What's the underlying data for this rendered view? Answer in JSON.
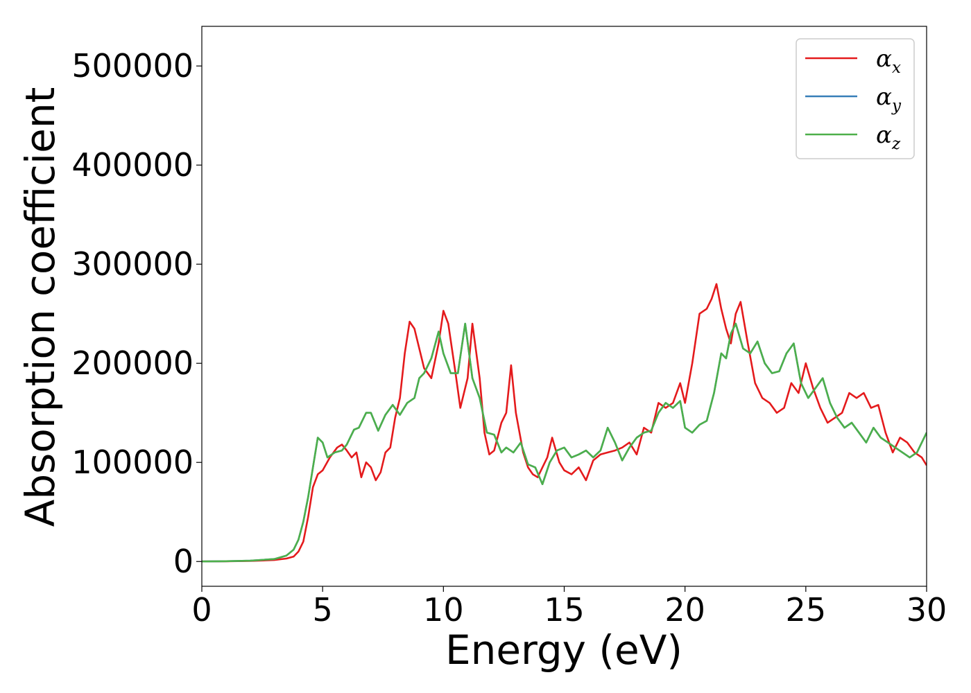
{
  "chart_data": {
    "type": "line",
    "title": "",
    "xlabel": "Energy (eV)",
    "ylabel": "Absorption coefficient",
    "xlim": [
      0,
      30
    ],
    "ylim": [
      -25000,
      540000
    ],
    "xticks": [
      0,
      5,
      10,
      15,
      20,
      25,
      30
    ],
    "xtick_labels": [
      "0",
      "5",
      "10",
      "15",
      "20",
      "25",
      "30"
    ],
    "yticks": [
      0,
      100000,
      200000,
      300000,
      400000,
      500000
    ],
    "ytick_labels": [
      "0",
      "100000",
      "200000",
      "300000",
      "400000",
      "500000"
    ],
    "grid": false,
    "legend_position": "top-right",
    "series": [
      {
        "name": "αx",
        "symbol": "α",
        "subscript": "x",
        "color": "#e41a1c",
        "x": [
          0,
          1,
          2,
          3,
          3.5,
          3.8,
          4.0,
          4.2,
          4.4,
          4.6,
          4.8,
          5.0,
          5.3,
          5.6,
          5.8,
          6.0,
          6.2,
          6.4,
          6.6,
          6.8,
          7.0,
          7.2,
          7.4,
          7.6,
          7.8,
          8.0,
          8.2,
          8.4,
          8.6,
          8.8,
          9.0,
          9.2,
          9.5,
          9.8,
          10.0,
          10.2,
          10.5,
          10.7,
          11.0,
          11.2,
          11.5,
          11.7,
          11.9,
          12.1,
          12.4,
          12.6,
          12.8,
          13.0,
          13.3,
          13.5,
          13.7,
          13.9,
          14.1,
          14.3,
          14.5,
          14.8,
          15.0,
          15.3,
          15.6,
          15.9,
          16.2,
          16.5,
          16.8,
          17.1,
          17.4,
          17.7,
          18.0,
          18.3,
          18.6,
          18.9,
          19.2,
          19.5,
          19.8,
          20.0,
          20.3,
          20.6,
          20.9,
          21.1,
          21.3,
          21.5,
          21.7,
          21.9,
          22.1,
          22.3,
          22.6,
          22.9,
          23.2,
          23.5,
          23.8,
          24.1,
          24.4,
          24.7,
          25.0,
          25.3,
          25.6,
          25.9,
          26.2,
          26.5,
          26.8,
          27.1,
          27.4,
          27.7,
          28.0,
          28.3,
          28.6,
          28.9,
          29.2,
          29.5,
          29.8,
          30.0
        ],
        "y": [
          0,
          200,
          500,
          1500,
          3000,
          5000,
          10000,
          20000,
          45000,
          75000,
          88000,
          92000,
          105000,
          115000,
          118000,
          112000,
          105000,
          110000,
          85000,
          100000,
          95000,
          82000,
          90000,
          110000,
          115000,
          145000,
          165000,
          210000,
          242000,
          235000,
          215000,
          195000,
          185000,
          220000,
          253000,
          240000,
          190000,
          155000,
          185000,
          240000,
          185000,
          130000,
          108000,
          112000,
          140000,
          150000,
          198000,
          150000,
          110000,
          95000,
          88000,
          85000,
          95000,
          105000,
          125000,
          100000,
          92000,
          88000,
          95000,
          82000,
          102000,
          108000,
          110000,
          112000,
          115000,
          120000,
          108000,
          135000,
          130000,
          160000,
          155000,
          160000,
          180000,
          160000,
          200000,
          250000,
          255000,
          265000,
          280000,
          255000,
          235000,
          220000,
          250000,
          262000,
          220000,
          180000,
          165000,
          160000,
          150000,
          155000,
          180000,
          170000,
          200000,
          175000,
          155000,
          140000,
          145000,
          150000,
          170000,
          165000,
          170000,
          155000,
          158000,
          130000,
          110000,
          125000,
          120000,
          110000,
          105000,
          97000
        ]
      },
      {
        "name": "αy",
        "symbol": "α",
        "subscript": "y",
        "color": "#377eb8",
        "x": [
          0,
          1,
          2,
          3,
          3.5,
          3.8,
          4.0,
          4.2,
          4.4,
          4.6,
          4.8,
          5.0,
          5.2,
          5.5,
          5.8,
          6.0,
          6.3,
          6.5,
          6.8,
          7.0,
          7.3,
          7.6,
          7.9,
          8.2,
          8.5,
          8.8,
          9.0,
          9.2,
          9.5,
          9.8,
          10.0,
          10.3,
          10.6,
          10.9,
          11.2,
          11.5,
          11.8,
          12.1,
          12.4,
          12.6,
          12.9,
          13.2,
          13.5,
          13.8,
          14.1,
          14.4,
          14.7,
          15.0,
          15.3,
          15.6,
          15.9,
          16.2,
          16.5,
          16.8,
          17.1,
          17.4,
          17.7,
          18.0,
          18.3,
          18.6,
          18.9,
          19.2,
          19.5,
          19.8,
          20.0,
          20.3,
          20.6,
          20.9,
          21.2,
          21.5,
          21.7,
          21.9,
          22.1,
          22.4,
          22.7,
          23.0,
          23.3,
          23.6,
          23.9,
          24.2,
          24.5,
          24.8,
          25.1,
          25.4,
          25.7,
          26.0,
          26.3,
          26.6,
          26.9,
          27.2,
          27.5,
          27.8,
          28.1,
          28.4,
          28.7,
          29.0,
          29.3,
          29.6,
          30.0
        ],
        "y": [
          0,
          300,
          800,
          2500,
          6000,
          12000,
          22000,
          40000,
          65000,
          95000,
          125000,
          120000,
          105000,
          110000,
          112000,
          118000,
          133000,
          135000,
          150000,
          150000,
          132000,
          148000,
          158000,
          148000,
          160000,
          165000,
          185000,
          190000,
          205000,
          232000,
          210000,
          190000,
          190000,
          240000,
          185000,
          165000,
          130000,
          128000,
          110000,
          115000,
          110000,
          120000,
          98000,
          95000,
          78000,
          100000,
          112000,
          115000,
          105000,
          108000,
          112000,
          105000,
          112000,
          135000,
          120000,
          102000,
          115000,
          125000,
          130000,
          132000,
          150000,
          160000,
          155000,
          162000,
          135000,
          130000,
          138000,
          142000,
          170000,
          210000,
          205000,
          230000,
          240000,
          215000,
          210000,
          222000,
          200000,
          190000,
          192000,
          210000,
          220000,
          180000,
          165000,
          175000,
          185000,
          160000,
          145000,
          135000,
          140000,
          130000,
          120000,
          135000,
          125000,
          120000,
          115000,
          110000,
          105000,
          110000,
          130000
        ]
      },
      {
        "name": "αz",
        "symbol": "α",
        "subscript": "z",
        "color": "#4daf4a",
        "x": [
          0,
          1,
          2,
          3,
          3.5,
          3.8,
          4.0,
          4.2,
          4.4,
          4.6,
          4.8,
          5.0,
          5.2,
          5.5,
          5.8,
          6.0,
          6.3,
          6.5,
          6.8,
          7.0,
          7.3,
          7.6,
          7.9,
          8.2,
          8.5,
          8.8,
          9.0,
          9.2,
          9.5,
          9.8,
          10.0,
          10.3,
          10.6,
          10.9,
          11.2,
          11.5,
          11.8,
          12.1,
          12.4,
          12.6,
          12.9,
          13.2,
          13.5,
          13.8,
          14.1,
          14.4,
          14.7,
          15.0,
          15.3,
          15.6,
          15.9,
          16.2,
          16.5,
          16.8,
          17.1,
          17.4,
          17.7,
          18.0,
          18.3,
          18.6,
          18.9,
          19.2,
          19.5,
          19.8,
          20.0,
          20.3,
          20.6,
          20.9,
          21.2,
          21.5,
          21.7,
          21.9,
          22.1,
          22.4,
          22.7,
          23.0,
          23.3,
          23.6,
          23.9,
          24.2,
          24.5,
          24.8,
          25.1,
          25.4,
          25.7,
          26.0,
          26.3,
          26.6,
          26.9,
          27.2,
          27.5,
          27.8,
          28.1,
          28.4,
          28.7,
          29.0,
          29.3,
          29.6,
          30.0
        ],
        "y": [
          0,
          300,
          800,
          2500,
          6000,
          12000,
          22000,
          40000,
          65000,
          95000,
          125000,
          120000,
          105000,
          110000,
          112000,
          118000,
          133000,
          135000,
          150000,
          150000,
          132000,
          148000,
          158000,
          148000,
          160000,
          165000,
          185000,
          190000,
          205000,
          232000,
          210000,
          190000,
          190000,
          240000,
          185000,
          165000,
          130000,
          128000,
          110000,
          115000,
          110000,
          120000,
          98000,
          95000,
          78000,
          100000,
          112000,
          115000,
          105000,
          108000,
          112000,
          105000,
          112000,
          135000,
          120000,
          102000,
          115000,
          125000,
          130000,
          132000,
          150000,
          160000,
          155000,
          162000,
          135000,
          130000,
          138000,
          142000,
          170000,
          210000,
          205000,
          230000,
          240000,
          215000,
          210000,
          222000,
          200000,
          190000,
          192000,
          210000,
          220000,
          180000,
          165000,
          175000,
          185000,
          160000,
          145000,
          135000,
          140000,
          130000,
          120000,
          135000,
          125000,
          120000,
          115000,
          110000,
          105000,
          110000,
          130000
        ]
      }
    ]
  }
}
